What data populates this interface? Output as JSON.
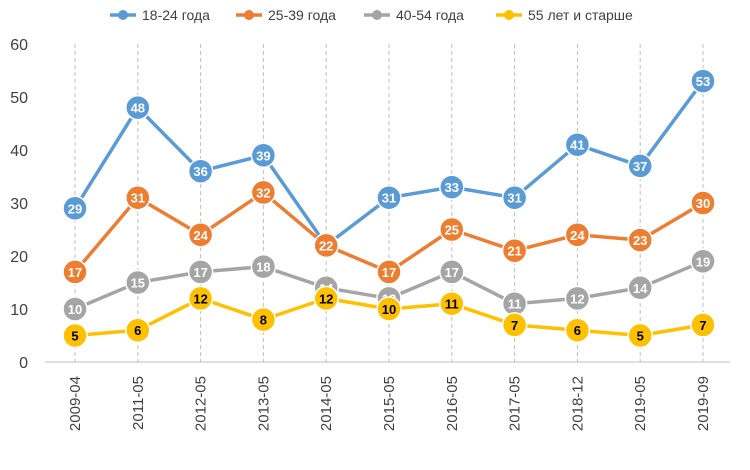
{
  "chart_data": {
    "type": "line",
    "title": "",
    "xlabel": "",
    "ylabel": "",
    "ylim": [
      0,
      60
    ],
    "yticks": [
      0,
      10,
      20,
      30,
      40,
      50,
      60
    ],
    "grid": "vertical-dashed",
    "legend_position": "top",
    "categories": [
      "2009-04",
      "2011-05",
      "2012-05",
      "2013-05",
      "2014-05",
      "2015-05",
      "2016-05",
      "2017-05",
      "2018-12",
      "2019-05",
      "2019-09"
    ],
    "series": [
      {
        "name": "18-24 года",
        "color": "#5B9BD5",
        "label_color": "#ffffff",
        "values": [
          29,
          48,
          36,
          39,
          22,
          31,
          33,
          31,
          41,
          37,
          53
        ]
      },
      {
        "name": "25-39 года",
        "color": "#ED7D31",
        "label_color": "#ffffff",
        "values": [
          17,
          31,
          24,
          32,
          22,
          17,
          25,
          21,
          24,
          23,
          30
        ]
      },
      {
        "name": "40-54 года",
        "color": "#A5A5A5",
        "label_color": "#ffffff",
        "values": [
          10,
          15,
          17,
          18,
          14,
          12,
          17,
          11,
          12,
          14,
          19
        ]
      },
      {
        "name": "55 лет и старше",
        "color": "#FFC000",
        "label_color": "#000000",
        "values": [
          5,
          6,
          12,
          8,
          12,
          10,
          11,
          7,
          6,
          5,
          7
        ]
      }
    ]
  }
}
